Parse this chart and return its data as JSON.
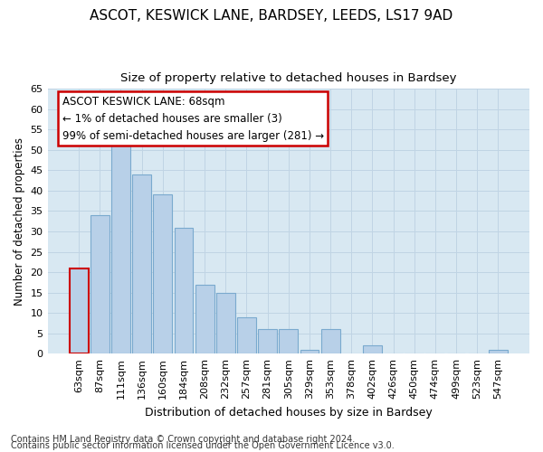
{
  "title1": "ASCOT, KESWICK LANE, BARDSEY, LEEDS, LS17 9AD",
  "title2": "Size of property relative to detached houses in Bardsey",
  "xlabel": "Distribution of detached houses by size in Bardsey",
  "ylabel": "Number of detached properties",
  "categories": [
    "63sqm",
    "87sqm",
    "111sqm",
    "136sqm",
    "160sqm",
    "184sqm",
    "208sqm",
    "232sqm",
    "257sqm",
    "281sqm",
    "305sqm",
    "329sqm",
    "353sqm",
    "378sqm",
    "402sqm",
    "426sqm",
    "450sqm",
    "474sqm",
    "499sqm",
    "523sqm",
    "547sqm"
  ],
  "values": [
    21,
    34,
    51,
    44,
    39,
    31,
    17,
    15,
    9,
    6,
    6,
    1,
    6,
    0,
    2,
    0,
    0,
    0,
    0,
    0,
    1
  ],
  "bar_color": "#b8d0e8",
  "bar_edge_color": "#7aaace",
  "annotation_box_text": "ASCOT KESWICK LANE: 68sqm\n← 1% of detached houses are smaller (3)\n99% of semi-detached houses are larger (281) →",
  "annotation_box_color": "#ffffff",
  "annotation_box_edge_color": "#cc0000",
  "ylim": [
    0,
    65
  ],
  "yticks": [
    0,
    5,
    10,
    15,
    20,
    25,
    30,
    35,
    40,
    45,
    50,
    55,
    60,
    65
  ],
  "grid_color": "#c0d4e4",
  "background_color": "#d8e8f2",
  "footer1": "Contains HM Land Registry data © Crown copyright and database right 2024.",
  "footer2": "Contains public sector information licensed under the Open Government Licence v3.0.",
  "highlight_bar_index": 0,
  "highlight_bar_edge_color": "#cc0000",
  "title1_fontsize": 11,
  "title2_fontsize": 9.5,
  "xlabel_fontsize": 9,
  "ylabel_fontsize": 8.5,
  "tick_fontsize": 8,
  "footer_fontsize": 7
}
